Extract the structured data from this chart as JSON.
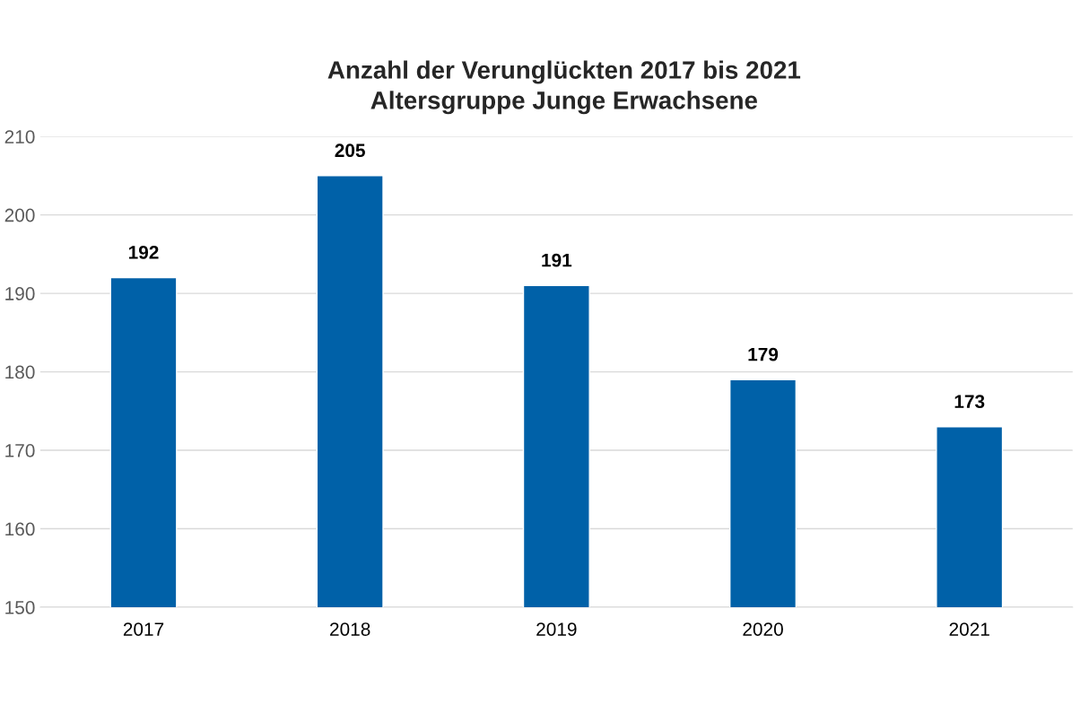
{
  "chart_data": {
    "type": "bar",
    "title": "Anzahl der Verunglückten 2017 bis 2021",
    "subtitle": "Altersgruppe Junge Erwachsene",
    "categories": [
      "2017",
      "2018",
      "2019",
      "2020",
      "2021"
    ],
    "values": [
      192,
      205,
      191,
      179,
      173
    ],
    "color": "#0061a8",
    "ylim": [
      150,
      210
    ],
    "yticks": [
      150,
      160,
      170,
      180,
      190,
      200,
      210
    ],
    "grid": "y",
    "data_labels": true
  }
}
